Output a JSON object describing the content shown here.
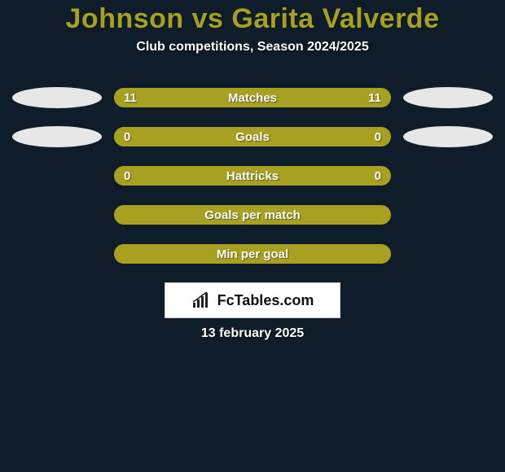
{
  "background_color": "#0e1d29",
  "title": "Johnson vs Garita Valverde",
  "title_color": "#a8a021",
  "subtitle": "Club competitions, Season 2024/2025",
  "bar_fill": "#a8a021",
  "bar_border": "#a8a021",
  "ellipse_color": "#e7e7e7",
  "rows": [
    {
      "label": "Matches",
      "left": "11",
      "right": "11",
      "left_ellipse": true,
      "right_ellipse": true
    },
    {
      "label": "Goals",
      "left": "0",
      "right": "0",
      "left_ellipse": true,
      "right_ellipse": true
    },
    {
      "label": "Hattricks",
      "left": "0",
      "right": "0",
      "left_ellipse": false,
      "right_ellipse": false
    },
    {
      "label": "Goals per match",
      "left": "",
      "right": "",
      "left_ellipse": false,
      "right_ellipse": false
    },
    {
      "label": "Min per goal",
      "left": "",
      "right": "",
      "left_ellipse": false,
      "right_ellipse": false
    }
  ],
  "brand": "FcTables.com",
  "date": "13 february 2025"
}
